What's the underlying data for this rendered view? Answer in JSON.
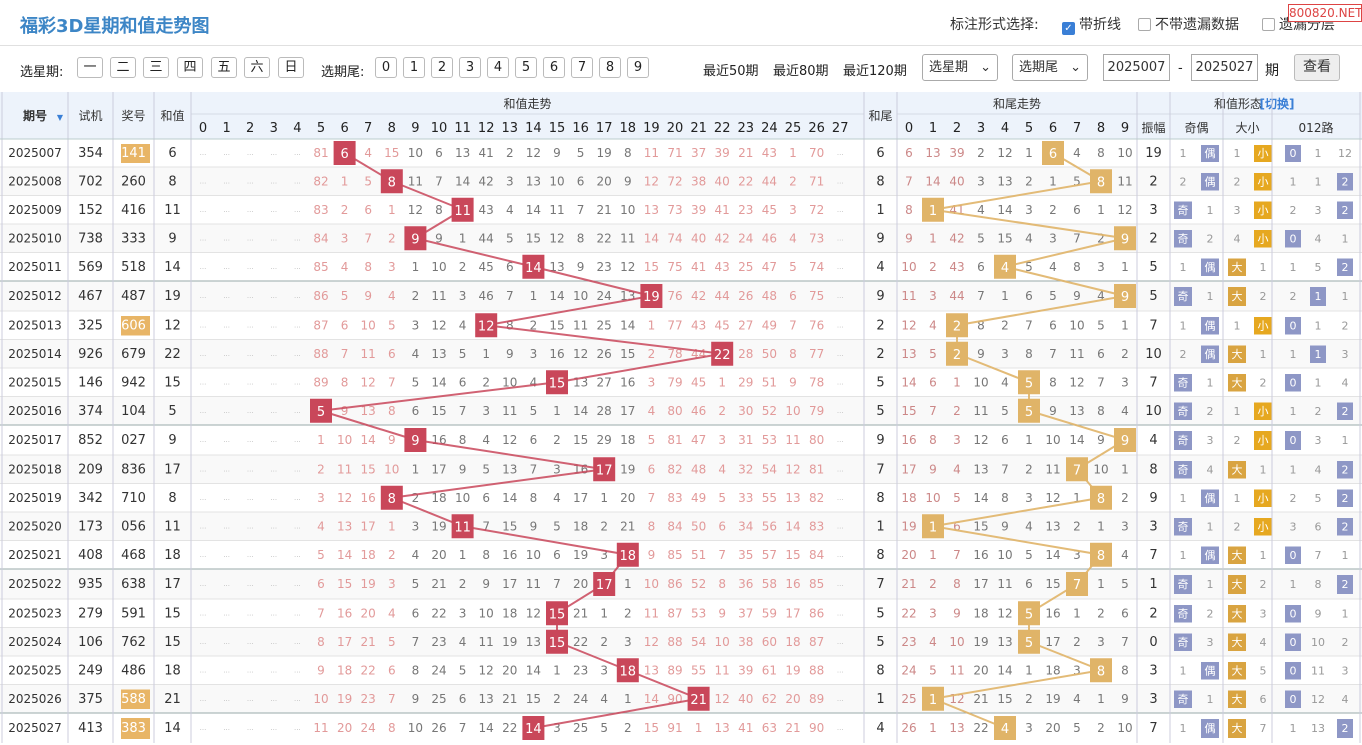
{
  "title": "福彩3D星期和值走势图",
  "options": {
    "label": "标注形式选择:",
    "o1": "带折线",
    "o2": "不带遗漏数据",
    "o3": "遗漏分层"
  },
  "watermark": "800820.NET",
  "filter": {
    "week_label": "选星期:",
    "weeks": [
      "一",
      "二",
      "三",
      "四",
      "五",
      "六",
      "日"
    ],
    "tail_label": "选期尾:",
    "tails": [
      "0",
      "1",
      "2",
      "3",
      "4",
      "5",
      "6",
      "7",
      "8",
      "9"
    ],
    "recent": [
      "最近50期",
      "最近80期",
      "最近120期"
    ],
    "week_select": "选星期",
    "tail_select": "选期尾",
    "from": "2025007",
    "dash": "-",
    "to": "2025027",
    "unit": "期",
    "view": "查看"
  },
  "headers": {
    "period": "期号",
    "test": "试机",
    "prize": "奖号",
    "sum": "和值",
    "sum_trend": "和值走势",
    "tail": "和尾",
    "tail_trend": "和尾走势",
    "shape": "和值形态",
    "switch": "[切换]",
    "amp": "振幅",
    "oe": "奇偶",
    "bs": "大小",
    "r012": "012路"
  },
  "shape_labels": {
    "odd": "奇",
    "even": "偶",
    "big": "大",
    "small": "小"
  },
  "colors": {
    "sum_hit": "#c9475a",
    "tail_hit": "#e0b468",
    "prize_hl": "#e8b566",
    "oe": "#8e97c6",
    "small": "#e6a820",
    "big": "#d9a441",
    "r012": "#8e97c6",
    "header_bg": "#edf3fb",
    "odd_row": "#f9f9f9"
  },
  "rows": [
    {
      "p": "2025007",
      "t": "354",
      "z": "141",
      "hl": true,
      "s": "6",
      "sm": [
        "···",
        "···",
        "···",
        "···",
        "···",
        "81",
        "·",
        "4",
        "15",
        "10",
        "6",
        "13",
        "41",
        "2",
        "12",
        "9",
        "5",
        "19",
        "8",
        "11",
        "71",
        "37",
        "39",
        "21",
        "43",
        "1",
        "70",
        "···"
      ],
      "tl": "6",
      "tm": [
        "6",
        "13",
        "39",
        "2",
        "12",
        "1",
        "·",
        "4",
        "8",
        "10"
      ],
      "a": "19",
      "oe": "偶",
      "oec": "1",
      "bs": "小",
      "bsc": "1",
      "r": [
        "0",
        "1",
        "12"
      ],
      "rh": 0
    },
    {
      "p": "2025008",
      "t": "702",
      "z": "260",
      "s": "8",
      "sm": [
        "···",
        "···",
        "···",
        "···",
        "···",
        "82",
        "1",
        "5",
        "·",
        "11",
        "7",
        "14",
        "42",
        "3",
        "13",
        "10",
        "6",
        "20",
        "9",
        "12",
        "72",
        "38",
        "40",
        "22",
        "44",
        "2",
        "71",
        "···"
      ],
      "tl": "8",
      "tm": [
        "7",
        "14",
        "40",
        "3",
        "13",
        "2",
        "1",
        "5",
        "·",
        "11"
      ],
      "a": "2",
      "oe": "偶",
      "oec": "2",
      "bs": "小",
      "bsc": "2",
      "r": [
        "1",
        "1",
        "2"
      ],
      "rh": 2
    },
    {
      "p": "2025009",
      "t": "152",
      "z": "416",
      "s": "11",
      "sm": [
        "···",
        "···",
        "···",
        "···",
        "···",
        "83",
        "2",
        "6",
        "1",
        "12",
        "8",
        "·",
        "43",
        "4",
        "14",
        "11",
        "7",
        "21",
        "10",
        "13",
        "73",
        "39",
        "41",
        "23",
        "45",
        "3",
        "72",
        "···"
      ],
      "tl": "1",
      "tm": [
        "8",
        "·",
        "41",
        "4",
        "14",
        "3",
        "2",
        "6",
        "1",
        "12"
      ],
      "a": "3",
      "oe": "奇",
      "oec": "1",
      "bs": "小",
      "bsc": "3",
      "r": [
        "2",
        "3",
        "2"
      ],
      "rh": 2
    },
    {
      "p": "2025010",
      "t": "738",
      "z": "333",
      "s": "9",
      "sm": [
        "···",
        "···",
        "···",
        "···",
        "···",
        "84",
        "3",
        "7",
        "2",
        "·",
        "9",
        "1",
        "44",
        "5",
        "15",
        "12",
        "8",
        "22",
        "11",
        "14",
        "74",
        "40",
        "42",
        "24",
        "46",
        "4",
        "73",
        "···"
      ],
      "tl": "9",
      "tm": [
        "9",
        "1",
        "42",
        "5",
        "15",
        "4",
        "3",
        "7",
        "2",
        "·"
      ],
      "a": "2",
      "oe": "奇",
      "oec": "2",
      "bs": "小",
      "bsc": "4",
      "r": [
        "0",
        "4",
        "1"
      ],
      "rh": 0
    },
    {
      "p": "2025011",
      "t": "569",
      "z": "518",
      "s": "14",
      "sm": [
        "···",
        "···",
        "···",
        "···",
        "···",
        "85",
        "4",
        "8",
        "3",
        "1",
        "10",
        "2",
        "45",
        "6",
        "·",
        "13",
        "9",
        "23",
        "12",
        "15",
        "75",
        "41",
        "43",
        "25",
        "47",
        "5",
        "74",
        "···"
      ],
      "tl": "4",
      "tm": [
        "10",
        "2",
        "43",
        "6",
        "·",
        "5",
        "4",
        "8",
        "3",
        "1"
      ],
      "a": "5",
      "oe": "偶",
      "oec": "1",
      "bs": "大",
      "bsc": "1",
      "r": [
        "1",
        "5",
        "2"
      ],
      "rh": 2
    },
    {
      "p": "2025012",
      "t": "467",
      "z": "487",
      "s": "19",
      "sm": [
        "···",
        "···",
        "···",
        "···",
        "···",
        "86",
        "5",
        "9",
        "4",
        "2",
        "11",
        "3",
        "46",
        "7",
        "1",
        "14",
        "10",
        "24",
        "13",
        "·",
        "76",
        "42",
        "44",
        "26",
        "48",
        "6",
        "75",
        "···"
      ],
      "tl": "9",
      "tm": [
        "11",
        "3",
        "44",
        "7",
        "1",
        "6",
        "5",
        "9",
        "4",
        "·"
      ],
      "a": "5",
      "oe": "奇",
      "oec": "1",
      "bs": "大",
      "bsc": "2",
      "r": [
        "2",
        "1",
        "1"
      ],
      "rh": 1
    },
    {
      "p": "2025013",
      "t": "325",
      "z": "606",
      "hl": true,
      "s": "12",
      "sm": [
        "···",
        "···",
        "···",
        "···",
        "···",
        "87",
        "6",
        "10",
        "5",
        "3",
        "12",
        "4",
        "·",
        "8",
        "2",
        "15",
        "11",
        "25",
        "14",
        "1",
        "77",
        "43",
        "45",
        "27",
        "49",
        "7",
        "76",
        "···"
      ],
      "tl": "2",
      "tm": [
        "12",
        "4",
        "·",
        "8",
        "2",
        "7",
        "6",
        "10",
        "5",
        "1"
      ],
      "a": "7",
      "oe": "偶",
      "oec": "1",
      "bs": "小",
      "bsc": "1",
      "r": [
        "0",
        "1",
        "2"
      ],
      "rh": 0
    },
    {
      "p": "2025014",
      "t": "926",
      "z": "679",
      "s": "22",
      "sm": [
        "···",
        "···",
        "···",
        "···",
        "···",
        "88",
        "7",
        "11",
        "6",
        "4",
        "13",
        "5",
        "1",
        "9",
        "3",
        "16",
        "12",
        "26",
        "15",
        "2",
        "78",
        "44",
        "·",
        "28",
        "50",
        "8",
        "77",
        "···"
      ],
      "tl": "2",
      "tm": [
        "13",
        "5",
        "·",
        "9",
        "3",
        "8",
        "7",
        "11",
        "6",
        "2"
      ],
      "a": "10",
      "oe": "偶",
      "oec": "2",
      "bs": "大",
      "bsc": "1",
      "r": [
        "1",
        "1",
        "3"
      ],
      "rh": 1
    },
    {
      "p": "2025015",
      "t": "146",
      "z": "942",
      "s": "15",
      "sm": [
        "···",
        "···",
        "···",
        "···",
        "···",
        "89",
        "8",
        "12",
        "7",
        "5",
        "14",
        "6",
        "2",
        "10",
        "4",
        "·",
        "13",
        "27",
        "16",
        "3",
        "79",
        "45",
        "1",
        "29",
        "51",
        "9",
        "78",
        "···"
      ],
      "tl": "5",
      "tm": [
        "14",
        "6",
        "1",
        "10",
        "4",
        "·",
        "8",
        "12",
        "7",
        "3"
      ],
      "a": "7",
      "oe": "奇",
      "oec": "1",
      "bs": "大",
      "bsc": "2",
      "r": [
        "0",
        "1",
        "4"
      ],
      "rh": 0
    },
    {
      "p": "2025016",
      "t": "374",
      "z": "104",
      "s": "5",
      "sm": [
        "···",
        "···",
        "···",
        "···",
        "···",
        "·",
        "9",
        "13",
        "8",
        "6",
        "15",
        "7",
        "3",
        "11",
        "5",
        "1",
        "14",
        "28",
        "17",
        "4",
        "80",
        "46",
        "2",
        "30",
        "52",
        "10",
        "79",
        "···"
      ],
      "tl": "5",
      "tm": [
        "15",
        "7",
        "2",
        "11",
        "5",
        "·",
        "9",
        "13",
        "8",
        "4"
      ],
      "a": "10",
      "oe": "奇",
      "oec": "2",
      "bs": "小",
      "bsc": "1",
      "r": [
        "1",
        "2",
        "2"
      ],
      "rh": 2
    },
    {
      "p": "2025017",
      "t": "852",
      "z": "027",
      "s": "9",
      "sm": [
        "···",
        "···",
        "···",
        "···",
        "···",
        "1",
        "10",
        "14",
        "9",
        "·",
        "16",
        "8",
        "4",
        "12",
        "6",
        "2",
        "15",
        "29",
        "18",
        "5",
        "81",
        "47",
        "3",
        "31",
        "53",
        "11",
        "80",
        "···"
      ],
      "tl": "9",
      "tm": [
        "16",
        "8",
        "3",
        "12",
        "6",
        "1",
        "10",
        "14",
        "9",
        "·"
      ],
      "a": "4",
      "oe": "奇",
      "oec": "3",
      "bs": "小",
      "bsc": "2",
      "r": [
        "0",
        "3",
        "1"
      ],
      "rh": 0
    },
    {
      "p": "2025018",
      "t": "209",
      "z": "836",
      "s": "17",
      "sm": [
        "···",
        "···",
        "···",
        "···",
        "···",
        "2",
        "11",
        "15",
        "10",
        "1",
        "17",
        "9",
        "5",
        "13",
        "7",
        "3",
        "16",
        "·",
        "19",
        "6",
        "82",
        "48",
        "4",
        "32",
        "54",
        "12",
        "81",
        "···"
      ],
      "tl": "7",
      "tm": [
        "17",
        "9",
        "4",
        "13",
        "7",
        "2",
        "11",
        "·",
        "10",
        "1"
      ],
      "a": "8",
      "oe": "奇",
      "oec": "4",
      "bs": "大",
      "bsc": "1",
      "r": [
        "1",
        "4",
        "2"
      ],
      "rh": 2
    },
    {
      "p": "2025019",
      "t": "342",
      "z": "710",
      "s": "8",
      "sm": [
        "···",
        "···",
        "···",
        "···",
        "···",
        "3",
        "12",
        "16",
        "·",
        "2",
        "18",
        "10",
        "6",
        "14",
        "8",
        "4",
        "17",
        "1",
        "20",
        "7",
        "83",
        "49",
        "5",
        "33",
        "55",
        "13",
        "82",
        "···"
      ],
      "tl": "8",
      "tm": [
        "18",
        "10",
        "5",
        "14",
        "8",
        "3",
        "12",
        "1",
        "·",
        "2"
      ],
      "a": "9",
      "oe": "偶",
      "oec": "1",
      "bs": "小",
      "bsc": "1",
      "r": [
        "2",
        "5",
        "2"
      ],
      "rh": 2
    },
    {
      "p": "2025020",
      "t": "173",
      "z": "056",
      "s": "11",
      "sm": [
        "···",
        "···",
        "···",
        "···",
        "···",
        "4",
        "13",
        "17",
        "1",
        "3",
        "19",
        "·",
        "7",
        "15",
        "9",
        "5",
        "18",
        "2",
        "21",
        "8",
        "84",
        "50",
        "6",
        "34",
        "56",
        "14",
        "83",
        "···"
      ],
      "tl": "1",
      "tm": [
        "19",
        "·",
        "6",
        "15",
        "9",
        "4",
        "13",
        "2",
        "1",
        "3"
      ],
      "a": "3",
      "oe": "奇",
      "oec": "1",
      "bs": "小",
      "bsc": "2",
      "r": [
        "3",
        "6",
        "2"
      ],
      "rh": 2
    },
    {
      "p": "2025021",
      "t": "408",
      "z": "468",
      "s": "18",
      "sm": [
        "···",
        "···",
        "···",
        "···",
        "···",
        "5",
        "14",
        "18",
        "2",
        "4",
        "20",
        "1",
        "8",
        "16",
        "10",
        "6",
        "19",
        "3",
        "·",
        "9",
        "85",
        "51",
        "7",
        "35",
        "57",
        "15",
        "84",
        "···"
      ],
      "tl": "8",
      "tm": [
        "20",
        "1",
        "7",
        "16",
        "10",
        "5",
        "14",
        "3",
        "·",
        "4"
      ],
      "a": "7",
      "oe": "偶",
      "oec": "1",
      "bs": "大",
      "bsc": "1",
      "r": [
        "0",
        "7",
        "1"
      ],
      "rh": 0
    },
    {
      "p": "2025022",
      "t": "935",
      "z": "638",
      "s": "17",
      "sm": [
        "···",
        "···",
        "···",
        "···",
        "···",
        "6",
        "15",
        "19",
        "3",
        "5",
        "21",
        "2",
        "9",
        "17",
        "11",
        "7",
        "20",
        "·",
        "1",
        "10",
        "86",
        "52",
        "8",
        "36",
        "58",
        "16",
        "85",
        "···"
      ],
      "tl": "7",
      "tm": [
        "21",
        "2",
        "8",
        "17",
        "11",
        "6",
        "15",
        "·",
        "1",
        "5"
      ],
      "a": "1",
      "oe": "奇",
      "oec": "1",
      "bs": "大",
      "bsc": "2",
      "r": [
        "1",
        "8",
        "2"
      ],
      "rh": 2
    },
    {
      "p": "2025023",
      "t": "279",
      "z": "591",
      "s": "15",
      "sm": [
        "···",
        "···",
        "···",
        "···",
        "···",
        "7",
        "16",
        "20",
        "4",
        "6",
        "22",
        "3",
        "10",
        "18",
        "12",
        "·",
        "21",
        "1",
        "2",
        "11",
        "87",
        "53",
        "9",
        "37",
        "59",
        "17",
        "86",
        "···"
      ],
      "tl": "5",
      "tm": [
        "22",
        "3",
        "9",
        "18",
        "12",
        "·",
        "16",
        "1",
        "2",
        "6"
      ],
      "a": "2",
      "oe": "奇",
      "oec": "2",
      "bs": "大",
      "bsc": "3",
      "r": [
        "0",
        "9",
        "1"
      ],
      "rh": 0
    },
    {
      "p": "2025024",
      "t": "106",
      "z": "762",
      "s": "15",
      "sm": [
        "···",
        "···",
        "···",
        "···",
        "···",
        "8",
        "17",
        "21",
        "5",
        "7",
        "23",
        "4",
        "11",
        "19",
        "13",
        "·",
        "22",
        "2",
        "3",
        "12",
        "88",
        "54",
        "10",
        "38",
        "60",
        "18",
        "87",
        "···"
      ],
      "tl": "5",
      "tm": [
        "23",
        "4",
        "10",
        "19",
        "13",
        "·",
        "17",
        "2",
        "3",
        "7"
      ],
      "a": "0",
      "oe": "奇",
      "oec": "3",
      "bs": "大",
      "bsc": "4",
      "r": [
        "0",
        "10",
        "2"
      ],
      "rh": 0
    },
    {
      "p": "2025025",
      "t": "249",
      "z": "486",
      "s": "18",
      "sm": [
        "···",
        "···",
        "···",
        "···",
        "···",
        "9",
        "18",
        "22",
        "6",
        "8",
        "24",
        "5",
        "12",
        "20",
        "14",
        "1",
        "23",
        "3",
        "·",
        "13",
        "89",
        "55",
        "11",
        "39",
        "61",
        "19",
        "88",
        "···"
      ],
      "tl": "8",
      "tm": [
        "24",
        "5",
        "11",
        "20",
        "14",
        "1",
        "18",
        "3",
        "·",
        "8"
      ],
      "a": "3",
      "oe": "偶",
      "oec": "1",
      "bs": "大",
      "bsc": "5",
      "r": [
        "0",
        "11",
        "3"
      ],
      "rh": 0
    },
    {
      "p": "2025026",
      "t": "375",
      "z": "588",
      "hl": true,
      "s": "21",
      "sm": [
        "···",
        "···",
        "···",
        "···",
        "···",
        "10",
        "19",
        "23",
        "7",
        "9",
        "25",
        "6",
        "13",
        "21",
        "15",
        "2",
        "24",
        "4",
        "1",
        "14",
        "90",
        "·",
        "12",
        "40",
        "62",
        "20",
        "89",
        "···"
      ],
      "tl": "1",
      "tm": [
        "25",
        "·",
        "12",
        "21",
        "15",
        "2",
        "19",
        "4",
        "1",
        "9"
      ],
      "a": "3",
      "oe": "奇",
      "oec": "1",
      "bs": "大",
      "bsc": "6",
      "r": [
        "0",
        "12",
        "4"
      ],
      "rh": 0
    },
    {
      "p": "2025027",
      "t": "413",
      "z": "383",
      "hl": true,
      "s": "14",
      "sm": [
        "···",
        "···",
        "···",
        "···",
        "···",
        "11",
        "20",
        "24",
        "8",
        "10",
        "26",
        "7",
        "14",
        "22",
        "·",
        "3",
        "25",
        "5",
        "2",
        "15",
        "91",
        "1",
        "13",
        "41",
        "63",
        "21",
        "90",
        "···"
      ],
      "tl": "4",
      "tm": [
        "26",
        "1",
        "13",
        "22",
        "·",
        "3",
        "20",
        "5",
        "2",
        "10"
      ],
      "a": "7",
      "oe": "偶",
      "oec": "1",
      "bs": "大",
      "bsc": "7",
      "r": [
        "1",
        "13",
        "2"
      ],
      "rh": 2
    }
  ]
}
